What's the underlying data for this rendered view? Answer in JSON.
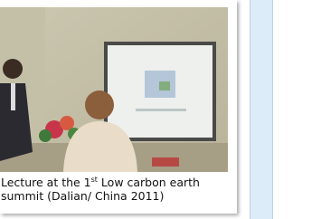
{
  "photo": {
    "caption": {
      "before": "Lecture at the 1",
      "sup": "st",
      "after": " Low carbon earth summit (Dalian/ China 2011)"
    }
  }
}
